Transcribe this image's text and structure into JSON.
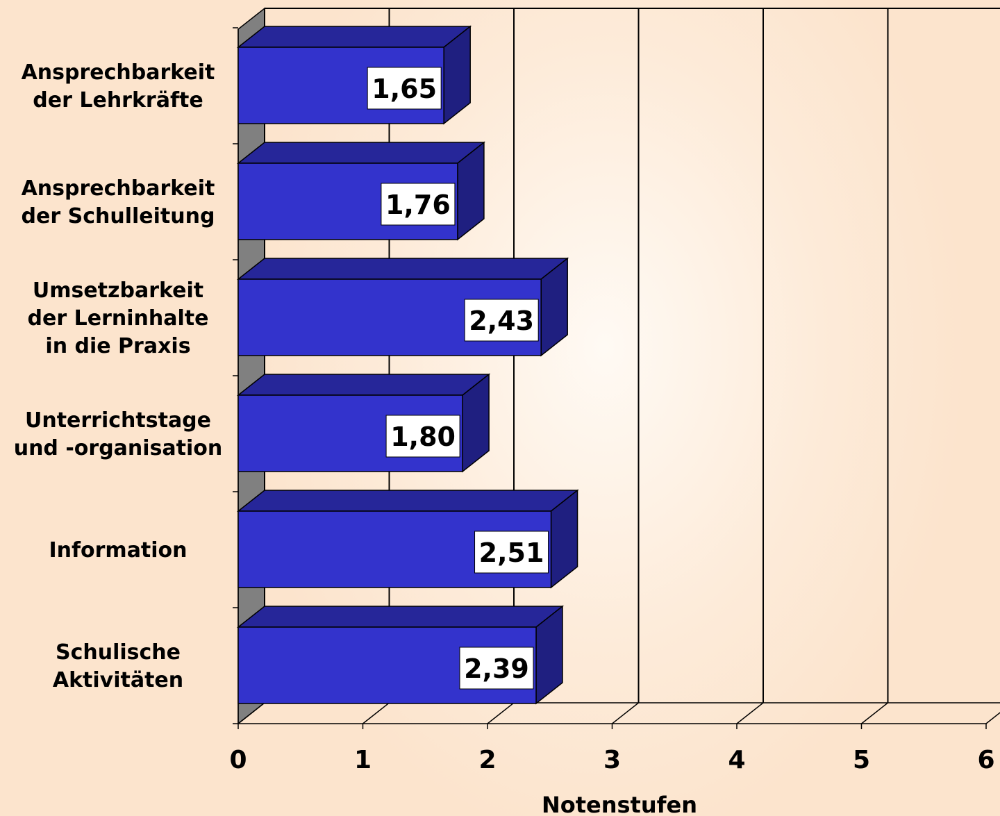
{
  "chart_data": {
    "type": "bar",
    "orientation": "horizontal",
    "three_d": true,
    "categories": [
      [
        "Ansprechbarkeit",
        "der Lehrkräfte"
      ],
      [
        "Ansprechbarkeit",
        "der Schulleitung"
      ],
      [
        "Umsetzbarkeit",
        "der Lerninhalte",
        "in die Praxis"
      ],
      [
        "Unterrichtstage",
        "und -organisation"
      ],
      [
        "Information"
      ],
      [
        "Schulische",
        "Aktivitäten"
      ]
    ],
    "values": [
      1.65,
      1.76,
      2.43,
      1.8,
      2.51,
      2.39
    ],
    "value_labels": [
      "1,65",
      "1,76",
      "2,43",
      "1,80",
      "2,51",
      "2,39"
    ],
    "xlim": [
      0,
      6
    ],
    "x_ticks": [
      0,
      1,
      2,
      3,
      4,
      5,
      6
    ],
    "xlabel": "Notenstufen",
    "grid": true,
    "colors": {
      "bar_front": "#3333cc",
      "bar_top": "#262699",
      "bar_side": "#1f1f80",
      "wall": "#808080",
      "background": "#fde8d4"
    }
  }
}
